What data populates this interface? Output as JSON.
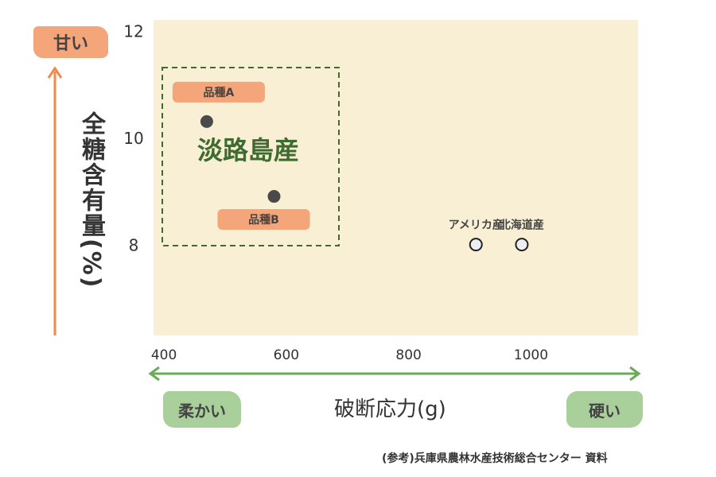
{
  "chart_data": {
    "type": "scatter",
    "xlabel": "破断応力(g)",
    "ylabel": "全糖含有量(%)",
    "xlim": [
      383,
      1175
    ],
    "ylim": [
      6.3,
      12.2
    ],
    "xticks": [
      400,
      600,
      800,
      1000
    ],
    "yticks": [
      8,
      10,
      12
    ],
    "grid": false,
    "plot_background": "#f8efd4",
    "points": [
      {
        "label": "品種A",
        "x": 470,
        "y": 10.3,
        "style": "filled",
        "color": "#4a4a4a"
      },
      {
        "label": "品種B",
        "x": 580,
        "y": 8.9,
        "style": "filled",
        "color": "#4a4a4a"
      },
      {
        "label": "アメリカ産",
        "x": 910,
        "y": 8.0,
        "style": "hollow",
        "color": "#222222"
      },
      {
        "label": "北海道産",
        "x": 985,
        "y": 8.0,
        "style": "hollow",
        "color": "#222222"
      }
    ],
    "group": {
      "label": "淡路島産",
      "color": "#3e6b2f",
      "members": [
        "品種A",
        "品種B"
      ]
    },
    "annotations": {
      "sweet": "甘い",
      "soft": "柔かい",
      "hard": "硬い"
    },
    "colors": {
      "y_arrow": "#f08a4b",
      "x_arrow": "#6aaa5a",
      "label_orange": "#f4a67a",
      "label_green": "#a9cf9a"
    }
  },
  "source": "(参考)兵庫県農林水産技術総合センター 資料"
}
